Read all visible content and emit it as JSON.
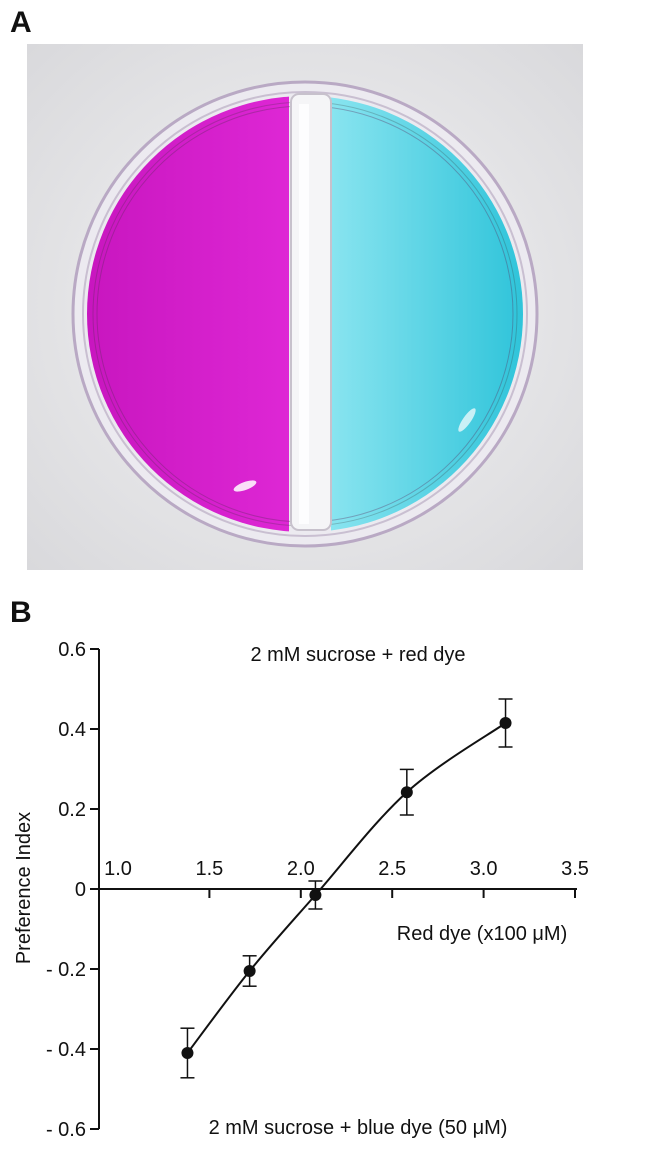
{
  "panels": {
    "a_label": "A",
    "b_label": "B"
  },
  "photo": {
    "description_name": "two-compartment petri dish",
    "left_color": "#e020d6",
    "right_color": "#3fd6e8",
    "background_color": "#e6e6e8"
  },
  "chart_data": {
    "type": "line",
    "title_top": "2 mM sucrose + red dye",
    "title_bottom": "2 mM sucrose + blue dye (50 μM)",
    "xlabel": "Red dye (x100 μM)",
    "ylabel": "Preference Index",
    "xlim": [
      1.0,
      3.5
    ],
    "ylim": [
      -0.6,
      0.6
    ],
    "x_ticks": [
      1.0,
      1.5,
      2.0,
      2.5,
      3.0,
      3.5
    ],
    "x_tick_labels": [
      "1.0",
      "1.5",
      "2.0",
      "2.5",
      "3.0",
      "3.5"
    ],
    "y_ticks": [
      0.6,
      0.4,
      0.2,
      0,
      -0.2,
      -0.4,
      -0.6
    ],
    "y_tick_labels": [
      "0.6",
      "0.4",
      "0.2",
      "0",
      "- 0.2",
      "- 0.4",
      "- 0.6"
    ],
    "series": [
      {
        "name": "Preference Index",
        "x": [
          1.38,
          1.72,
          2.08,
          2.58,
          3.12
        ],
        "values": [
          -0.41,
          -0.205,
          -0.015,
          0.242,
          0.415
        ],
        "error": [
          0.062,
          0.038,
          0.035,
          0.057,
          0.06
        ]
      }
    ]
  }
}
